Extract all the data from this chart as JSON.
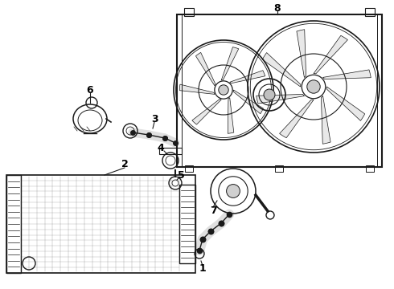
{
  "bg_color": "#ffffff",
  "line_color": "#1a1a1a",
  "label_fontsize": 8,
  "label_color": "#000000",
  "fig_w": 4.9,
  "fig_h": 3.6,
  "dpi": 100
}
